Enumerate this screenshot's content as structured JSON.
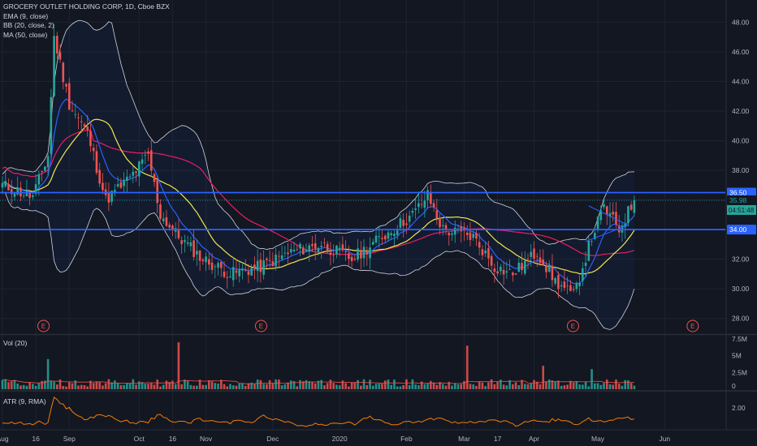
{
  "legend": {
    "title": "GROCERY OUTLET HOLDING CORP, 1D, Cboe BZX",
    "ema": "EMA (9, close)",
    "bb": "BB (20, close, 2)",
    "ma": "MA (50, close)"
  },
  "panes": {
    "volume_label": "Vol (20)",
    "atr_label": "ATR (9, RMA)"
  },
  "colors": {
    "background": "#131722",
    "grid": "#1f2330",
    "up": "#26a69a",
    "down": "#ef5350",
    "ema": "#2962ff",
    "bb": "#d1d4dc",
    "ma50": "#f2e84b",
    "ma_red": "#e91e63",
    "atr": "#f57c00",
    "hline": "#2962ff",
    "price_tag": "#26a69a",
    "earnings": "#ef5350"
  },
  "chart_data": {
    "type": "candlestick",
    "symbol": "GROCERY OUTLET HOLDING CORP",
    "interval": "1D",
    "exchange": "Cboe BZX",
    "x_tick_labels": [
      "Aug",
      "16",
      "Sep",
      "Oct",
      "16",
      "Nov",
      "Dec",
      "2020",
      "Feb",
      "Mar",
      "17",
      "Apr",
      "May",
      "Jun"
    ],
    "y_tick_labels": [
      "48.00",
      "46.00",
      "44.00",
      "42.00",
      "40.00",
      "38.00",
      "36.00",
      "32.00",
      "30.00",
      "28.00"
    ],
    "ylim": [
      27,
      49.5
    ],
    "price_labels": {
      "resistance": "36.50",
      "last": "35.98",
      "countdown": "04:51:48",
      "support": "34.00"
    },
    "horizontal_lines": [
      36.5,
      34.0
    ],
    "last_price": 35.98,
    "earnings_marker": "E",
    "earnings_positions": [
      0.06,
      0.36,
      0.79,
      0.955
    ],
    "anchors": [
      [
        0,
        37.0
      ],
      [
        10,
        36.2
      ],
      [
        15,
        39.0
      ],
      [
        17,
        47.0
      ],
      [
        22,
        42.5
      ],
      [
        28,
        40.5
      ],
      [
        34,
        36.0
      ],
      [
        42,
        37.5
      ],
      [
        48,
        39.0
      ],
      [
        52,
        35.0
      ],
      [
        58,
        33.5
      ],
      [
        66,
        32.0
      ],
      [
        75,
        31.0
      ],
      [
        85,
        31.5
      ],
      [
        95,
        32.5
      ],
      [
        105,
        33.0
      ],
      [
        115,
        32.0
      ],
      [
        125,
        33.5
      ],
      [
        135,
        35.0
      ],
      [
        140,
        36.3
      ],
      [
        145,
        34.0
      ],
      [
        155,
        33.5
      ],
      [
        162,
        31.5
      ],
      [
        168,
        31.0
      ],
      [
        176,
        32.5
      ],
      [
        182,
        30.5
      ],
      [
        188,
        29.5
      ],
      [
        194,
        33.5
      ],
      [
        198,
        35.5
      ],
      [
        203,
        34.0
      ],
      [
        208,
        35.98
      ]
    ],
    "seed": 11,
    "volume": {
      "yticks": [
        "7.5M",
        "5M",
        "2.5M",
        "0"
      ],
      "ylim": [
        0,
        7500000
      ],
      "spikes": [
        [
          15,
          4500000
        ],
        [
          58,
          7000000
        ],
        [
          153,
          6500000
        ],
        [
          178,
          3500000
        ],
        [
          194,
          3000000
        ]
      ]
    },
    "atr": {
      "ytick": "2.00",
      "ylim": [
        1.5,
        2.6
      ]
    }
  }
}
